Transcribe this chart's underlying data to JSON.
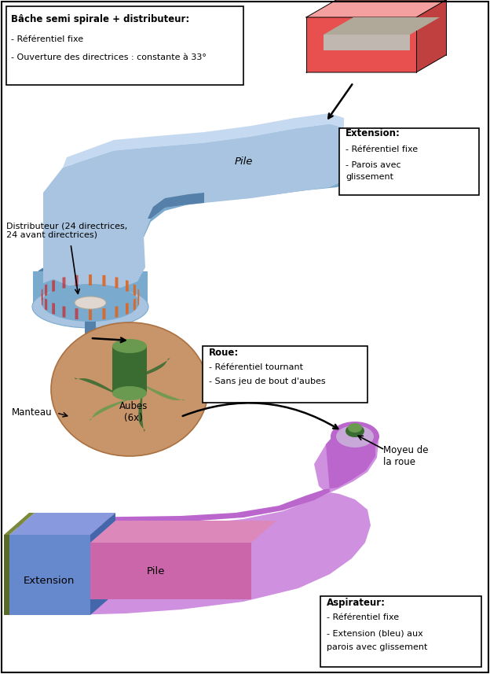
{
  "bg_color": "#ffffff",
  "box1_title": "Bâche semi spirale + distributeur:",
  "box1_lines": [
    "- Référentiel fixe",
    "- Ouverture des directrices : constante à 33°"
  ],
  "box2_title": "Extension:",
  "box2_lines": [
    "- Référentiel fixe",
    "- Parois avec",
    "glissement"
  ],
  "box3_title": "Roue:",
  "box3_lines": [
    "- Référentiel tournant",
    "- Sans jeu de bout d'aubes"
  ],
  "box4_title": "Aspirateur:",
  "box4_lines": [
    "- Référentiel fixe",
    "- Extension (bleu) aux",
    "parois avec glissement"
  ],
  "label_pile_top": "Pile",
  "label_distributeur": "Distributeur (24 directrices,\n24 avant directrices)",
  "label_aubes": "Aubes\n(6x)",
  "label_manteau": "Manteau",
  "label_moyeu": "Moyeu de\nla roue",
  "label_extension": "Extension",
  "label_pile_bottom": "Pile",
  "c_blue_vlight": "#c5d9f0",
  "c_blue_light": "#a8c4e0",
  "c_blue_mid": "#7baacf",
  "c_blue_dark": "#5580aa",
  "c_blue_pipe": "#8ab0d0",
  "c_red_top": "#f5a0a0",
  "c_red_front": "#e85050",
  "c_red_right": "#c04040",
  "c_red_dark": "#b03030",
  "c_grey_slot": "#c0b8b0",
  "c_green_dark": "#3a6b30",
  "c_green_mid": "#6a9a50",
  "c_green_light": "#8ab870",
  "c_tan": "#c8956a",
  "c_tan_light": "#ddb090",
  "c_purple_light": "#d090e0",
  "c_purple_mid": "#bb66cc",
  "c_purple_dark": "#9944aa",
  "c_purple_vdark": "#7722880",
  "c_blue_ext": "#6688cc",
  "c_blue_ext_top": "#8899dd",
  "c_blue_ext_side": "#4466aa",
  "c_olive": "#5a6a28",
  "c_olive_top": "#7a8a38",
  "c_pink": "#cc66aa",
  "c_pink_top": "#dd88bb",
  "c_dist_red": "#cc2222",
  "c_dist_orange": "#dd6622"
}
